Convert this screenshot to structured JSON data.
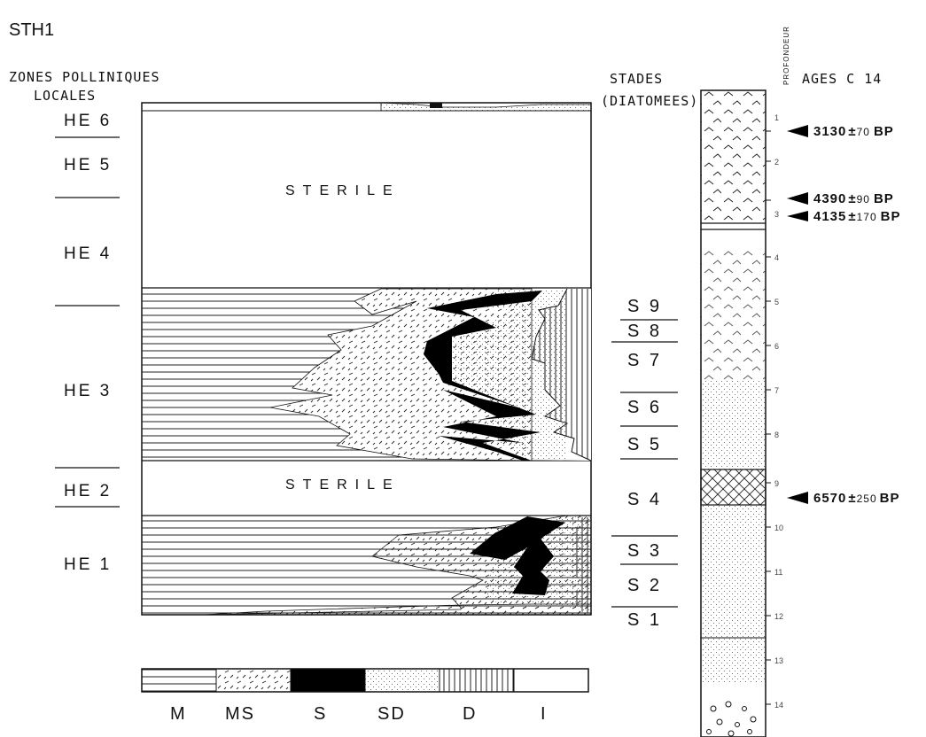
{
  "figure": {
    "title": "STH1",
    "left_header": [
      "ZONES POLLINIQUES",
      "LOCALES"
    ],
    "stages_header": [
      "STADES",
      "(DIATOMEES)"
    ],
    "depth_header": "PROFONDEUR",
    "ages_header": "AGES  C 14",
    "sterile_label": "STERILE",
    "zones": [
      "HE 6",
      "HE 5",
      "HE 4",
      "HE 3",
      "HE 2",
      "HE 1"
    ],
    "stages": [
      "S 9",
      "S 8",
      "S 7",
      "S 6",
      "S 5",
      "S 4",
      "S 3",
      "S 2",
      "S 1"
    ],
    "depth_ticks": [
      "1",
      "2",
      "3",
      "4",
      "5",
      "6",
      "7",
      "8",
      "9",
      "10",
      "11",
      "12",
      "13",
      "14"
    ],
    "ages": [
      {
        "value": "3130",
        "err": "70",
        "unit": "BP"
      },
      {
        "value": "4390",
        "err": "90",
        "unit": "BP"
      },
      {
        "value": "4135",
        "err": "170",
        "unit": "BP"
      },
      {
        "value": "6570",
        "err": "250",
        "unit": "BP"
      }
    ],
    "legend": [
      "M",
      "MS",
      "S",
      "SD",
      "D",
      "I"
    ]
  }
}
